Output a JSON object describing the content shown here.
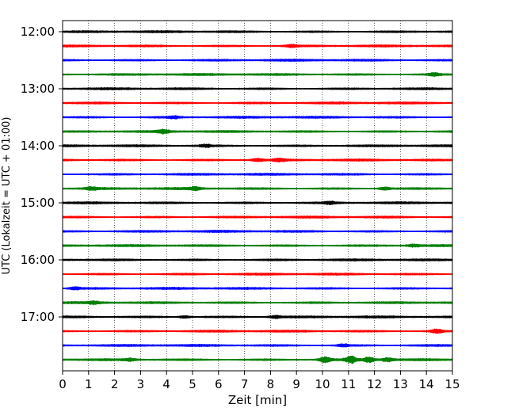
{
  "chart_data": {
    "type": "line",
    "title": "",
    "xlabel": "Zeit  [min]",
    "ylabel": "UTC (Lokalzeit = UTC + 01:00)",
    "xlim": [
      0,
      15
    ],
    "x_ticks": [
      "0",
      "1",
      "2",
      "3",
      "4",
      "5",
      "6",
      "7",
      "8",
      "9",
      "10",
      "11",
      "12",
      "13",
      "14",
      "15"
    ],
    "y_ticks": [
      "12:00",
      "13:00",
      "14:00",
      "15:00",
      "16:00",
      "17:00"
    ],
    "grid": "vertical dotted lines at every minute",
    "trace_minutes": 15,
    "trace_colors": [
      "#000000",
      "#ff0000",
      "#0000ff",
      "#007f00"
    ],
    "traces": [
      {
        "start": "12:00",
        "color": "#000000",
        "events": []
      },
      {
        "start": "12:15",
        "color": "#ff0000",
        "events": [
          {
            "x": 8.8,
            "amp": 1.8
          }
        ]
      },
      {
        "start": "12:30",
        "color": "#0000ff",
        "events": []
      },
      {
        "start": "12:45",
        "color": "#007f00",
        "events": [
          {
            "x": 14.3,
            "amp": 1.8
          }
        ]
      },
      {
        "start": "13:00",
        "color": "#000000",
        "events": []
      },
      {
        "start": "13:15",
        "color": "#ff0000",
        "events": []
      },
      {
        "start": "13:30",
        "color": "#0000ff",
        "events": [
          {
            "x": 4.3,
            "amp": 1.5
          }
        ]
      },
      {
        "start": "13:45",
        "color": "#007f00",
        "events": [
          {
            "x": 3.9,
            "amp": 2.2
          }
        ]
      },
      {
        "start": "14:00",
        "color": "#000000",
        "events": [
          {
            "x": 5.5,
            "amp": 1.6
          }
        ]
      },
      {
        "start": "14:15",
        "color": "#ff0000",
        "events": [
          {
            "x": 7.5,
            "amp": 2.0
          },
          {
            "x": 8.3,
            "amp": 1.8
          }
        ]
      },
      {
        "start": "14:30",
        "color": "#0000ff",
        "events": []
      },
      {
        "start": "14:45",
        "color": "#007f00",
        "events": [
          {
            "x": 1.1,
            "amp": 2.0
          },
          {
            "x": 5.1,
            "amp": 2.2
          },
          {
            "x": 12.4,
            "amp": 2.0
          }
        ]
      },
      {
        "start": "15:00",
        "color": "#000000",
        "events": [
          {
            "x": 10.3,
            "amp": 1.6
          }
        ]
      },
      {
        "start": "15:15",
        "color": "#ff0000",
        "events": []
      },
      {
        "start": "15:30",
        "color": "#0000ff",
        "events": []
      },
      {
        "start": "15:45",
        "color": "#007f00",
        "events": [
          {
            "x": 13.5,
            "amp": 1.6
          }
        ]
      },
      {
        "start": "16:00",
        "color": "#000000",
        "events": []
      },
      {
        "start": "16:15",
        "color": "#ff0000",
        "events": []
      },
      {
        "start": "16:30",
        "color": "#0000ff",
        "events": [
          {
            "x": 0.5,
            "amp": 1.6
          }
        ]
      },
      {
        "start": "16:45",
        "color": "#007f00",
        "events": [
          {
            "x": 1.2,
            "amp": 1.6
          }
        ]
      },
      {
        "start": "17:00",
        "color": "#000000",
        "events": [
          {
            "x": 4.7,
            "amp": 1.8
          },
          {
            "x": 8.2,
            "amp": 1.8
          }
        ]
      },
      {
        "start": "17:15",
        "color": "#ff0000",
        "events": [
          {
            "x": 14.4,
            "amp": 2.6
          }
        ]
      },
      {
        "start": "17:30",
        "color": "#0000ff",
        "events": [
          {
            "x": 10.8,
            "amp": 1.6
          }
        ]
      },
      {
        "start": "17:45",
        "color": "#007f00",
        "events": [
          {
            "x": 2.6,
            "amp": 1.6
          },
          {
            "x": 10.1,
            "amp": 3.8
          },
          {
            "x": 11.1,
            "amp": 4.2
          },
          {
            "x": 11.8,
            "amp": 3.5
          },
          {
            "x": 12.5,
            "amp": 2.8
          }
        ]
      }
    ]
  }
}
